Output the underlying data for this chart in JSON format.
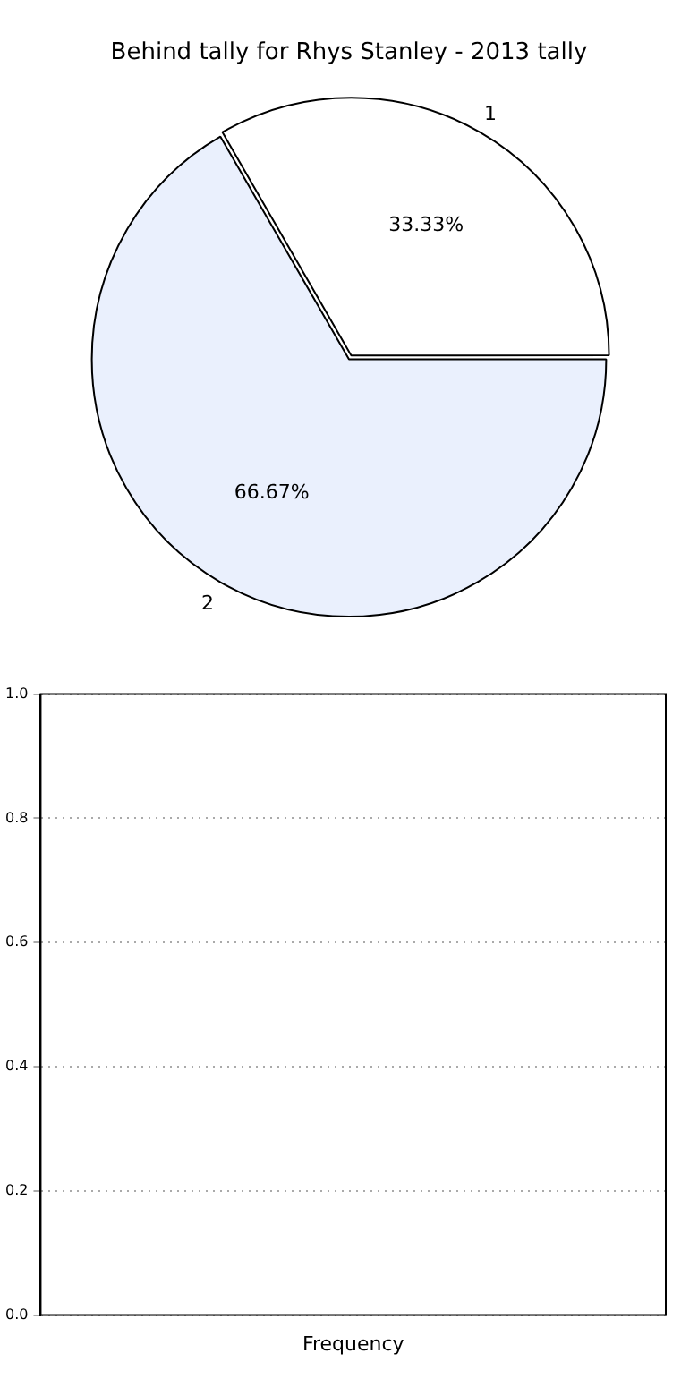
{
  "chart_data": [
    {
      "type": "pie",
      "title": "Behind tally for Rhys Stanley - 2013 tally",
      "categories": [
        "1",
        "2"
      ],
      "values": [
        33.33,
        66.67
      ],
      "colors": [
        "#ffffff",
        "#eaf0fd"
      ],
      "value_labels": [
        "33.33%",
        "66.67%"
      ],
      "legend": false
    },
    {
      "type": "bar",
      "xlabel": "Frequency",
      "categories": [
        null
      ],
      "values": [
        null
      ],
      "ylim": [
        0,
        1
      ],
      "yticks": [
        {
          "value": 0,
          "label": "0.0"
        },
        {
          "value": 0.2,
          "label": "0.2"
        },
        {
          "value": 0.4,
          "label": "0.4"
        },
        {
          "value": 0.6,
          "label": "0.6"
        },
        {
          "value": 0.8,
          "label": "0.8"
        },
        {
          "value": 1,
          "label": "1.0"
        }
      ],
      "grid": "y",
      "legend": false
    }
  ]
}
